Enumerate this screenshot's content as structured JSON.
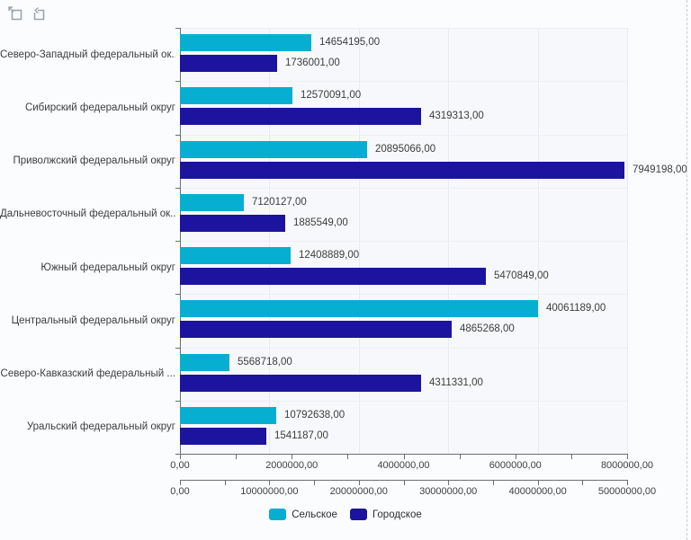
{
  "toolbar": {
    "buttons": [
      {
        "name": "clear-selection",
        "icon": "selection-frame-arrow"
      },
      {
        "name": "undo-zoom",
        "icon": "square-undo-arrow"
      }
    ]
  },
  "chart_data": {
    "type": "bar",
    "orientation": "horizontal",
    "title": "",
    "grid": true,
    "legend_position": "bottom-center",
    "categories": [
      "Северо-Западный федеральный ок...",
      "Сибирский федеральный округ",
      "Приволжский федеральный округ",
      "Дальневосточный федеральный ок...",
      "Южный федеральный округ",
      "Центральный федеральный округ",
      "Северо-Кавказский федеральный ...",
      "Уральский федеральный округ"
    ],
    "series": [
      {
        "name": "Сельское",
        "color": "#06AFD1",
        "axis": "bottom_secondary",
        "values": [
          14654195,
          12570091,
          20895066,
          7120127,
          12408889,
          40061189,
          5568718,
          10792638
        ],
        "labels": [
          "14654195,00",
          "12570091,00",
          "20895066,00",
          "7120127,00",
          "12408889,00",
          "40061189,00",
          "5568718,00",
          "10792638,00"
        ]
      },
      {
        "name": "Городское",
        "color": "#1C149E",
        "axis": "bottom_primary",
        "values": [
          1736001,
          4319313,
          7949198,
          1885549,
          5470849,
          4865268,
          4311331,
          1541187
        ],
        "labels": [
          "1736001,00",
          "4319313,00",
          "7949198,00",
          "1885549,00",
          "5470849,00",
          "4865268,00",
          "4311331,00",
          "1541187,00"
        ]
      }
    ],
    "axes": {
      "bottom_primary": {
        "min": 0,
        "max": 8000000,
        "tick_labels": [
          "0,00",
          "2000000,00",
          "4000000,00",
          "6000000,00",
          "8000000,00"
        ],
        "minor_ticks_per_interval": 1
      },
      "bottom_secondary": {
        "min": 0,
        "max": 50000000,
        "tick_labels": [
          "0,00",
          "10000000,00",
          "20000000,00",
          "30000000,00",
          "40000000,00",
          "50000000,00"
        ],
        "minor_ticks_per_interval": 1
      }
    },
    "legend": [
      "Сельское",
      "Городское"
    ]
  },
  "colors": {
    "rural_series": "#06AFD1",
    "urban_series": "#1C149E",
    "axis": "#6e6e73",
    "grid": "#e8ebf2",
    "text": "#3d3d3d"
  }
}
